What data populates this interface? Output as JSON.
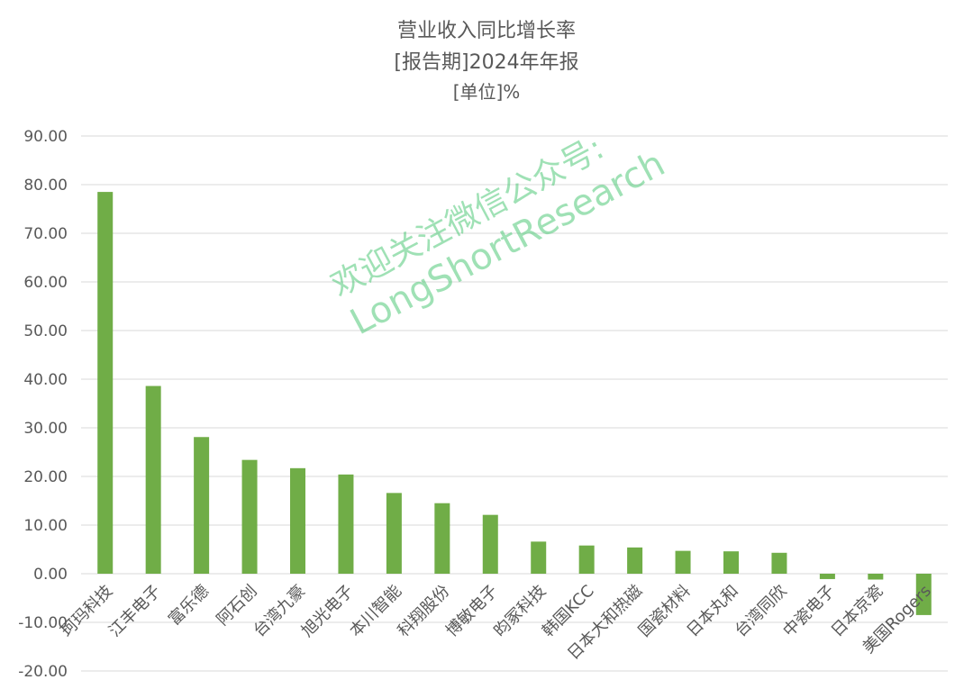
{
  "chart_data": {
    "type": "bar",
    "title": "营业收入同比增长率",
    "subtitle": "[报告期]2024年年报",
    "unit": "[单位]%",
    "categories": [
      "珂玛科技",
      "江丰电子",
      "富乐德",
      "阿石创",
      "台湾九豪",
      "旭光电子",
      "本川智能",
      "科翔股份",
      "博敏电子",
      "昀冢科技",
      "韩国KCC",
      "日本大和热磁",
      "国瓷材料",
      "日本丸和",
      "台湾同欣",
      "中瓷电子",
      "日本京瓷",
      "美国Rogers"
    ],
    "values": [
      78.5,
      38.6,
      28.1,
      23.4,
      21.7,
      20.4,
      16.6,
      14.5,
      12.1,
      6.6,
      5.8,
      5.4,
      4.7,
      4.6,
      4.3,
      -1.1,
      -1.2,
      -8.5
    ],
    "ylim": [
      -20,
      90
    ],
    "yticks": [
      -20,
      -10,
      0,
      10,
      20,
      30,
      40,
      50,
      60,
      70,
      80,
      90
    ],
    "ytick_labels": [
      "-20.00",
      "-10.00",
      "0.00",
      "10.00",
      "20.00",
      "30.00",
      "40.00",
      "50.00",
      "60.00",
      "70.00",
      "80.00",
      "90.00"
    ],
    "grid": true,
    "legend": "none",
    "bar_color": "#70ad47",
    "grid_color": "#d9d9d9",
    "text_color": "#595959"
  },
  "watermark": {
    "line1": "欢迎关注微信公众号:",
    "line2": "LongShortResearch"
  }
}
